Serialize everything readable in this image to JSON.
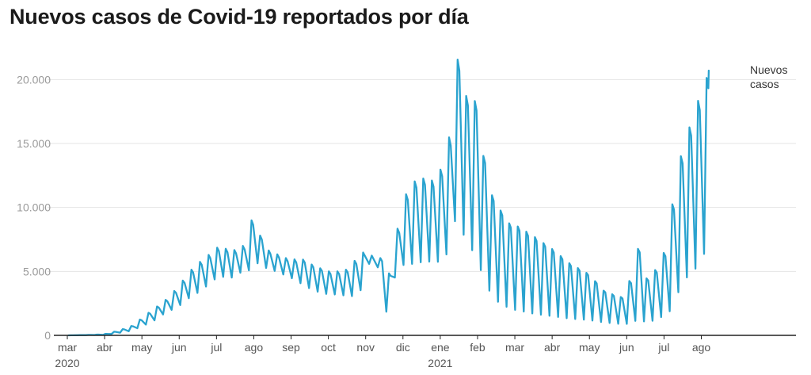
{
  "chart_data": {
    "type": "line",
    "title": "Nuevos casos de Covid-19 reportados por día",
    "xlabel": "",
    "ylabel": "",
    "ylim": [
      0,
      22500
    ],
    "yticks": [
      {
        "value": 0,
        "label": "0"
      },
      {
        "value": 5000,
        "label": "5.000"
      },
      {
        "value": 10000,
        "label": "10.000"
      },
      {
        "value": 15000,
        "label": "15.000"
      },
      {
        "value": 20000,
        "label": "20.000"
      }
    ],
    "xlim": [
      0,
      18.2
    ],
    "xticks": [
      {
        "value": 0,
        "label": "mar",
        "year": "2020"
      },
      {
        "value": 1,
        "label": "abr",
        "year": ""
      },
      {
        "value": 2,
        "label": "may",
        "year": ""
      },
      {
        "value": 3,
        "label": "jun",
        "year": ""
      },
      {
        "value": 4,
        "label": "jul",
        "year": ""
      },
      {
        "value": 5,
        "label": "ago",
        "year": ""
      },
      {
        "value": 6,
        "label": "sep",
        "year": ""
      },
      {
        "value": 7,
        "label": "oct",
        "year": ""
      },
      {
        "value": 8,
        "label": "nov",
        "year": ""
      },
      {
        "value": 9,
        "label": "dic",
        "year": ""
      },
      {
        "value": 10,
        "label": "ene",
        "year": "2021"
      },
      {
        "value": 11,
        "label": "feb",
        "year": ""
      },
      {
        "value": 12,
        "label": "mar",
        "year": ""
      },
      {
        "value": 13,
        "label": "abr",
        "year": ""
      },
      {
        "value": 14,
        "label": "may",
        "year": ""
      },
      {
        "value": 15,
        "label": "jun",
        "year": ""
      },
      {
        "value": 16,
        "label": "jul",
        "year": ""
      },
      {
        "value": 17,
        "label": "ago",
        "year": ""
      }
    ],
    "grid": true,
    "color": "#2aa3cf",
    "series": [
      {
        "name": "Nuevos casos",
        "label_lines": [
          "Nuevos",
          "casos"
        ],
        "x": [
          0,
          0.5,
          1.0,
          1.3,
          1.7,
          2.0,
          2.3,
          2.6,
          3.0,
          3.3,
          3.6,
          3.9,
          4.1,
          4.4,
          4.7,
          4.9,
          5.0,
          5.3,
          5.6,
          6.0,
          6.3,
          6.6,
          7.0,
          7.3,
          7.6,
          7.9,
          8.0,
          8.3,
          8.45,
          8.55,
          8.8,
          9.0,
          9.3,
          9.6,
          9.9,
          10.1,
          10.3,
          10.45,
          10.6,
          10.7,
          10.8,
          11.0,
          11.2,
          11.4,
          11.6,
          11.8,
          12.0,
          12.5,
          13.0,
          13.5,
          14.0,
          14.4,
          14.8,
          15.0,
          15.3,
          15.6,
          15.8,
          16.0,
          16.2,
          16.4,
          16.6,
          16.8,
          17.0,
          17.1,
          17.2
        ],
        "high": [
          0,
          30,
          80,
          300,
          650,
          1300,
          2000,
          2600,
          3800,
          5000,
          5800,
          6500,
          7000,
          6600,
          6800,
          8000,
          9600,
          6800,
          6400,
          5900,
          6000,
          5500,
          5000,
          5000,
          5200,
          6700,
          6300,
          6200,
          6000,
          3500,
          7000,
          10500,
          12000,
          12300,
          12000,
          13500,
          16000,
          21300,
          22300,
          19000,
          17500,
          18600,
          13500,
          11000,
          10000,
          8800,
          8700,
          7800,
          6800,
          5600,
          4800,
          3500,
          3000,
          3000,
          7000,
          4000,
          5200,
          6200,
          9500,
          12800,
          16000,
          16500,
          19200,
          19000,
          20700
        ],
        "low": [
          0,
          20,
          40,
          150,
          350,
          700,
          1100,
          1700,
          2300,
          3000,
          3500,
          4300,
          4600,
          4500,
          5000,
          5100,
          5800,
          5300,
          5000,
          4500,
          4000,
          3500,
          3200,
          3200,
          3000,
          3600,
          5500,
          5800,
          2800,
          1800,
          4700,
          5500,
          5600,
          5800,
          5700,
          6000,
          7000,
          10000,
          8000,
          7500,
          7000,
          5800,
          4200,
          3000,
          2500,
          2200,
          2000,
          1700,
          1500,
          1300,
          1200,
          1000,
          900,
          900,
          1200,
          1000,
          1300,
          1500,
          2000,
          3500,
          4500,
          5000,
          6000,
          6500,
          20700
        ]
      }
    ]
  }
}
